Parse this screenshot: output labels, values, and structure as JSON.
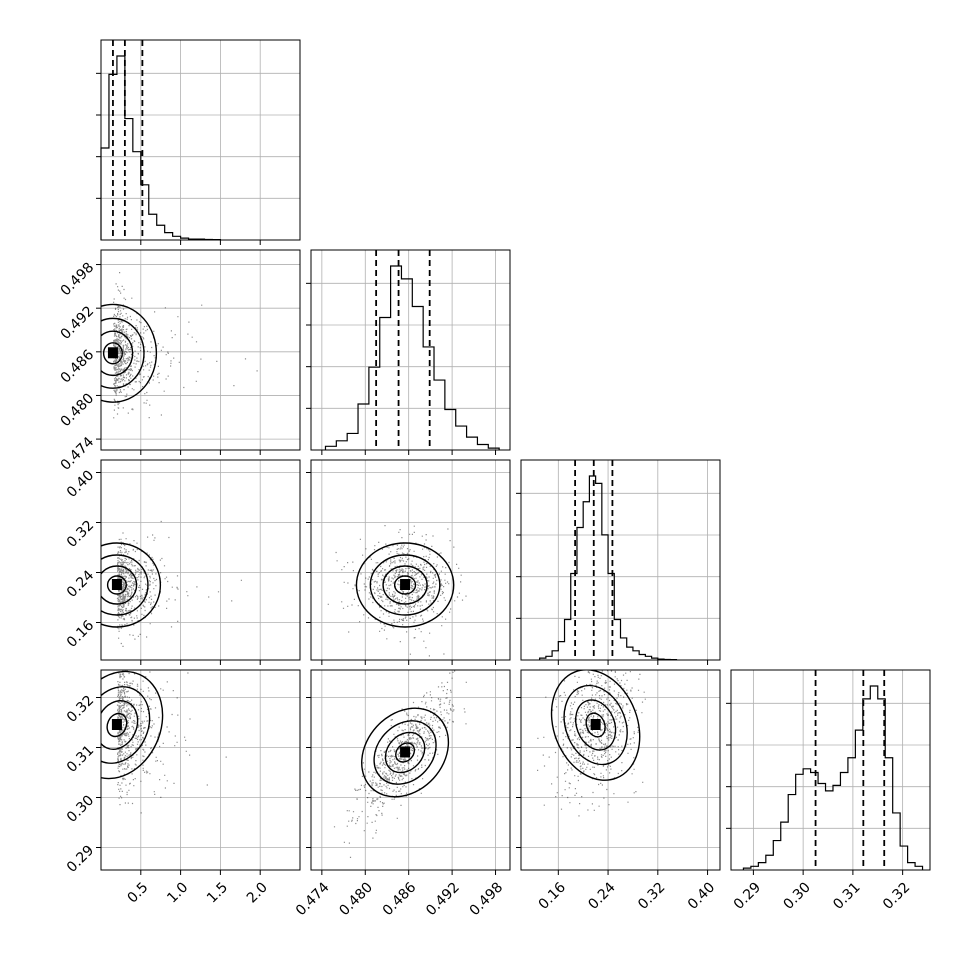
{
  "chart_data": {
    "type": "corner",
    "parameters": [
      {
        "index": 0,
        "range": [
          0.0,
          2.5
        ],
        "ticks": [
          {
            "v": 0.5,
            "label": "0.5"
          },
          {
            "v": 1.0,
            "label": "1.0"
          },
          {
            "v": 1.5,
            "label": "1.5"
          },
          {
            "v": 2.0,
            "label": "2.0"
          }
        ],
        "hist_bins": [
          0.0,
          0.1,
          0.2,
          0.3,
          0.4,
          0.5,
          0.6,
          0.7,
          0.8,
          0.9,
          1.0,
          1.1,
          1.2,
          1.3,
          1.4,
          1.5
        ],
        "hist_counts": [
          0.5,
          0.9,
          1.0,
          0.66,
          0.48,
          0.3,
          0.14,
          0.08,
          0.04,
          0.02,
          0.01,
          0.005,
          0.005,
          0.003,
          0.002
        ],
        "quantiles": [
          0.15,
          0.3,
          0.52
        ]
      },
      {
        "index": 1,
        "range": [
          0.4725,
          0.5
        ],
        "ticks": [
          {
            "v": 0.474,
            "label": "0.474"
          },
          {
            "v": 0.48,
            "label": "0.480"
          },
          {
            "v": 0.486,
            "label": "0.486"
          },
          {
            "v": 0.492,
            "label": "0.492"
          },
          {
            "v": 0.498,
            "label": "0.498"
          }
        ],
        "hist_bins": [
          0.4745,
          0.476,
          0.4775,
          0.479,
          0.4805,
          0.482,
          0.4835,
          0.485,
          0.4865,
          0.488,
          0.4895,
          0.491,
          0.4925,
          0.494,
          0.4955,
          0.497,
          0.4985
        ],
        "hist_counts": [
          0.02,
          0.05,
          0.09,
          0.25,
          0.45,
          0.72,
          1.0,
          0.93,
          0.78,
          0.56,
          0.38,
          0.22,
          0.13,
          0.07,
          0.03,
          0.01
        ],
        "quantiles": [
          0.4815,
          0.4846,
          0.4889
        ]
      },
      {
        "index": 2,
        "range": [
          0.1,
          0.42
        ],
        "ticks": [
          {
            "v": 0.16,
            "label": "0.16"
          },
          {
            "v": 0.24,
            "label": "0.24"
          },
          {
            "v": 0.32,
            "label": "0.32"
          },
          {
            "v": 0.4,
            "label": "0.40"
          }
        ],
        "hist_bins": [
          0.13,
          0.14,
          0.15,
          0.16,
          0.17,
          0.18,
          0.19,
          0.2,
          0.21,
          0.22,
          0.23,
          0.24,
          0.25,
          0.26,
          0.27,
          0.28,
          0.29,
          0.3,
          0.31,
          0.32,
          0.33,
          0.34,
          0.35
        ],
        "hist_counts": [
          0.01,
          0.02,
          0.05,
          0.1,
          0.22,
          0.47,
          0.72,
          0.86,
          1.0,
          0.96,
          0.68,
          0.47,
          0.22,
          0.12,
          0.07,
          0.05,
          0.03,
          0.02,
          0.01,
          0.005,
          0.003,
          0.002
        ],
        "quantiles": [
          0.187,
          0.217,
          0.247
        ]
      },
      {
        "index": 3,
        "range": [
          0.2855,
          0.3255
        ],
        "ticks": [
          {
            "v": 0.29,
            "label": "0.29"
          },
          {
            "v": 0.3,
            "label": "0.30"
          },
          {
            "v": 0.31,
            "label": "0.31"
          },
          {
            "v": 0.32,
            "label": "0.32"
          }
        ],
        "hist_bins": [
          0.288,
          0.2895,
          0.291,
          0.2925,
          0.294,
          0.2955,
          0.297,
          0.2985,
          0.3,
          0.3015,
          0.303,
          0.3045,
          0.306,
          0.3075,
          0.309,
          0.3105,
          0.312,
          0.3135,
          0.315,
          0.3165,
          0.318,
          0.3195,
          0.321,
          0.3225,
          0.324
        ],
        "hist_counts": [
          0.01,
          0.02,
          0.04,
          0.08,
          0.16,
          0.26,
          0.41,
          0.52,
          0.55,
          0.53,
          0.47,
          0.43,
          0.46,
          0.53,
          0.61,
          0.76,
          0.93,
          1.0,
          0.93,
          0.61,
          0.31,
          0.13,
          0.04,
          0.02
        ],
        "quantiles": [
          0.3025,
          0.3121,
          0.3163
        ]
      }
    ],
    "pairs": [
      {
        "x": 0,
        "y": 1,
        "peak": [
          0.15,
          0.4858
        ],
        "spread": [
          0.26,
          0.0032
        ],
        "corr": 0.0
      },
      {
        "x": 0,
        "y": 2,
        "peak": [
          0.2,
          0.22
        ],
        "spread": [
          0.26,
          0.032
        ],
        "corr": 0.0
      },
      {
        "x": 0,
        "y": 3,
        "peak": [
          0.2,
          0.3145
        ],
        "spread": [
          0.26,
          0.0062
        ],
        "corr": -0.3
      },
      {
        "x": 1,
        "y": 2,
        "peak": [
          0.4855,
          0.22
        ],
        "spread": [
          0.0032,
          0.032
        ],
        "corr": 0.0
      },
      {
        "x": 1,
        "y": 3,
        "peak": [
          0.4855,
          0.309
        ],
        "spread": [
          0.0032,
          0.0062
        ],
        "corr": 0.82
      },
      {
        "x": 2,
        "y": 3,
        "peak": [
          0.22,
          0.3145
        ],
        "spread": [
          0.032,
          0.0062
        ],
        "corr": 0.25
      }
    ]
  }
}
